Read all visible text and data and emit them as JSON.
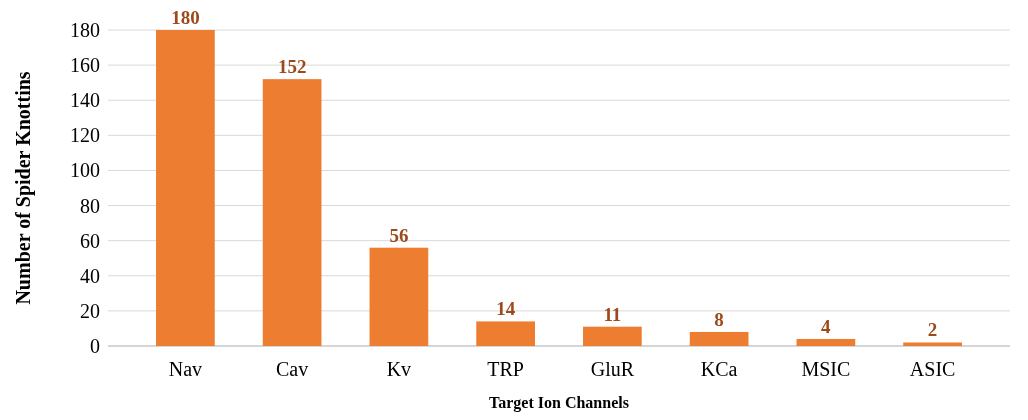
{
  "chart_data": {
    "type": "bar",
    "xlabel": "Target Ion Channels",
    "ylabel": "Number of Spider Knottins",
    "categories": [
      "Nav",
      "Cav",
      "Kv",
      "TRP",
      "GluR",
      "KCa",
      "MSIC",
      "ASIC"
    ],
    "values": [
      180,
      152,
      56,
      14,
      11,
      8,
      4,
      2
    ],
    "color": "#ed7d31",
    "ylim": [
      0,
      180
    ],
    "yticks": [
      0,
      20,
      40,
      60,
      80,
      100,
      120,
      140,
      160,
      180
    ],
    "grid": "y",
    "data_labels": true
  }
}
